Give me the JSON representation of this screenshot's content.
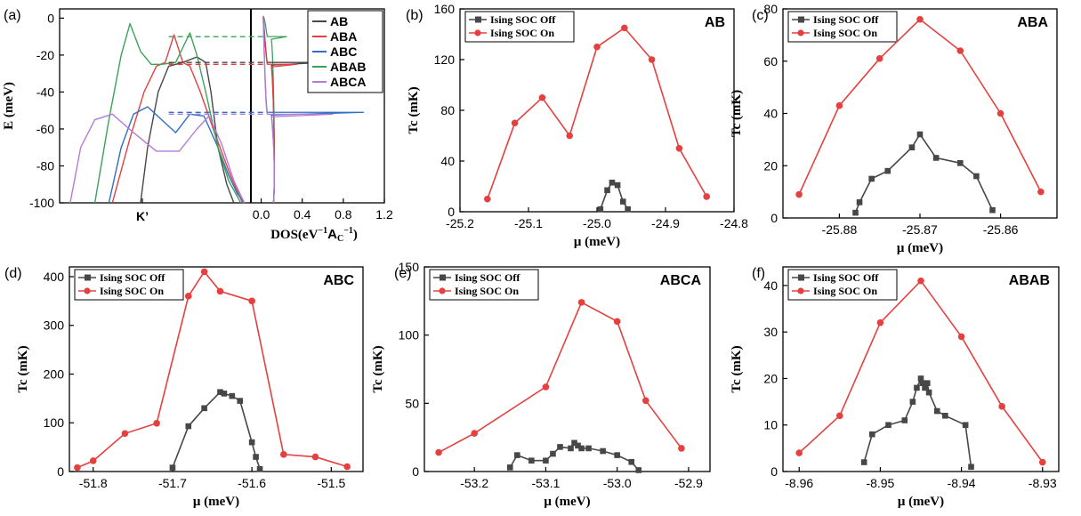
{
  "figure": {
    "colors": {
      "off": "#474747",
      "on": "#e5403f"
    }
  },
  "chart_data": [
    {
      "id": "a",
      "panel": "(a)",
      "type": "line",
      "ylabel": "E (meV)",
      "ylim": [
        -100,
        5
      ],
      "yticks": [
        0,
        -20,
        -40,
        -60,
        -80,
        -100
      ],
      "xtick_left": "K’",
      "dos_xlabel_main": "DOS",
      "dos_xlabel_unit": "(eV",
      "dos_xlabel_sup": "−1",
      "dos_xlabel_A": "A",
      "dos_xlabel_C": "C",
      "dos_xlabel_sup2": "−1",
      "dos_xlabel_close": ")",
      "dos_xlim": [
        -0.1,
        1.2
      ],
      "dos_xticks": [
        0.0,
        0.4,
        0.8,
        1.2
      ],
      "legend": [
        {
          "name": "AB",
          "color": "#474747"
        },
        {
          "name": "ABA",
          "color": "#e5403f"
        },
        {
          "name": "ABC",
          "color": "#2f6fc4"
        },
        {
          "name": "ABAB",
          "color": "#3aa35a"
        },
        {
          "name": "ABCA",
          "color": "#b57ad6"
        }
      ],
      "bands": [
        {
          "name": "AB",
          "color": "#474747",
          "x": [
            0.46,
            0.5,
            0.56,
            0.62,
            0.7,
            0.78,
            0.83,
            0.86,
            0.9,
            0.95,
            0.99
          ],
          "y": [
            -100,
            -70,
            -40,
            -26,
            -24,
            -21,
            -24,
            -40,
            -70,
            -90,
            -100
          ]
        },
        {
          "name": "ABA",
          "color": "#e5403f",
          "x": [
            0.3,
            0.4,
            0.48,
            0.55,
            0.6,
            0.65,
            0.7,
            0.74,
            0.8,
            0.88,
            0.97,
            1.04
          ],
          "y": [
            -100,
            -65,
            -40,
            -26,
            -24,
            -9,
            -24,
            -26,
            -40,
            -62,
            -85,
            -100
          ]
        },
        {
          "name": "ABC",
          "color": "#2f6fc4",
          "x": [
            0.28,
            0.35,
            0.42,
            0.5,
            0.58,
            0.66,
            0.74,
            0.82,
            0.9,
            0.96,
            1.01,
            1.05
          ],
          "y": [
            -100,
            -70,
            -52,
            -48,
            -55,
            -62,
            -52,
            -53,
            -70,
            -85,
            -95,
            -100
          ]
        },
        {
          "name": "ABAB",
          "color": "#3aa35a",
          "x": [
            0.2,
            0.28,
            0.35,
            0.4,
            0.46,
            0.52,
            0.58,
            0.66,
            0.74,
            0.78,
            0.83,
            0.9,
            0.96,
            1.03
          ],
          "y": [
            -100,
            -55,
            -20,
            -3,
            -18,
            -25,
            -25,
            -24,
            -8,
            -20,
            -40,
            -70,
            -88,
            -100
          ]
        },
        {
          "name": "ABCA",
          "color": "#b57ad6",
          "x": [
            0.06,
            0.12,
            0.2,
            0.3,
            0.42,
            0.55,
            0.68,
            0.78,
            0.85,
            0.92,
            0.99,
            1.05
          ],
          "y": [
            -100,
            -70,
            -55,
            -52,
            -62,
            -72,
            -72,
            -60,
            -53,
            -68,
            -88,
            -100
          ]
        }
      ],
      "dashed": [
        {
          "color": "#3aa35a",
          "y": -10
        },
        {
          "color": "#474747",
          "y": -24
        },
        {
          "color": "#e5403f",
          "y": -25
        },
        {
          "color": "#2f6fc4",
          "y": -51
        },
        {
          "color": "#b57ad6",
          "y": -52
        }
      ]
    },
    {
      "id": "b",
      "panel": "(b)",
      "name": "AB",
      "type": "line",
      "xlabel": "μ (meV)",
      "ylabel": "Tc (mK)",
      "xlim": [
        -25.2,
        -24.8
      ],
      "ylim": [
        0,
        160
      ],
      "xticks": [
        -25.2,
        -25.1,
        -25.0,
        -24.9,
        -24.8
      ],
      "xticklabels": [
        "-25.2",
        "-25.1",
        "-25.0",
        "-24.9",
        "-24.8"
      ],
      "yticks": [
        0,
        40,
        80,
        120,
        160
      ],
      "series": [
        {
          "name": "Ising SOC Off",
          "color": "#474747",
          "marker": "square",
          "x": [
            -24.995,
            -24.985,
            -24.978,
            -24.97,
            -24.962,
            -24.955
          ],
          "y": [
            2,
            17,
            23,
            21,
            8,
            2
          ]
        },
        {
          "name": "Ising SOC On",
          "color": "#e5403f",
          "marker": "circle",
          "x": [
            -25.16,
            -25.12,
            -25.08,
            -25.04,
            -25.0,
            -24.96,
            -24.92,
            -24.88,
            -24.84
          ],
          "y": [
            10,
            70,
            90,
            60,
            130,
            145,
            120,
            50,
            12
          ]
        }
      ]
    },
    {
      "id": "c",
      "panel": "(c)",
      "name": "ABA",
      "type": "line",
      "xlabel": "μ (meV)",
      "ylabel": "Tc (mK)",
      "xlim": [
        -25.887,
        -25.853
      ],
      "ylim": [
        0,
        80
      ],
      "xticks": [
        -25.88,
        -25.87,
        -25.86
      ],
      "xticklabels": [
        "-25.88",
        "-25.87",
        "-25.86"
      ],
      "yticks": [
        0,
        20,
        40,
        60,
        80
      ],
      "series": [
        {
          "name": "Ising SOC Off",
          "color": "#474747",
          "marker": "square",
          "x": [
            -25.878,
            -25.8775,
            -25.876,
            -25.874,
            -25.871,
            -25.87,
            -25.868,
            -25.865,
            -25.863,
            -25.861
          ],
          "y": [
            2,
            6,
            15,
            18,
            27,
            32,
            23,
            21,
            16,
            3
          ]
        },
        {
          "name": "Ising SOC On",
          "color": "#e5403f",
          "marker": "circle",
          "x": [
            -25.885,
            -25.88,
            -25.875,
            -25.87,
            -25.865,
            -25.86,
            -25.855
          ],
          "y": [
            9,
            43,
            61,
            76,
            64,
            40,
            10
          ]
        }
      ]
    },
    {
      "id": "d",
      "panel": "(d)",
      "name": "ABC",
      "type": "line",
      "xlabel": "μ (meV)",
      "ylabel": "Tc (mK)",
      "xlim": [
        -51.83,
        -51.46
      ],
      "ylim": [
        0,
        420
      ],
      "xticks": [
        -51.8,
        -51.7,
        -51.6,
        -51.5
      ],
      "xticklabels": [
        "-51.8",
        "-51.7",
        "-51.6",
        "-51.5"
      ],
      "yticks": [
        0,
        100,
        200,
        300,
        400
      ],
      "series": [
        {
          "name": "Ising SOC Off",
          "color": "#474747",
          "marker": "square",
          "x": [
            -51.7,
            -51.68,
            -51.66,
            -51.64,
            -51.635,
            -51.625,
            -51.615,
            -51.6,
            -51.595,
            -51.59
          ],
          "y": [
            8,
            93,
            130,
            163,
            160,
            155,
            145,
            60,
            30,
            5
          ]
        },
        {
          "name": "Ising SOC On",
          "color": "#e5403f",
          "marker": "circle",
          "x": [
            -51.82,
            -51.8,
            -51.76,
            -51.72,
            -51.68,
            -51.66,
            -51.64,
            -51.6,
            -51.56,
            -51.52,
            -51.48
          ],
          "y": [
            8,
            22,
            78,
            99,
            360,
            410,
            370,
            350,
            35,
            30,
            10
          ]
        }
      ]
    },
    {
      "id": "e",
      "panel": "(e)",
      "name": "ABCA",
      "type": "line",
      "xlabel": "μ (meV)",
      "ylabel": "Tc (mK)",
      "xlim": [
        -53.27,
        -52.87
      ],
      "ylim": [
        0,
        150
      ],
      "xticks": [
        -53.2,
        -53.1,
        -53.0,
        -52.9
      ],
      "xticklabels": [
        "-53.2",
        "-53.1",
        "-53.0",
        "-52.9"
      ],
      "yticks": [
        0,
        50,
        100,
        150
      ],
      "series": [
        {
          "name": "Ising SOC Off",
          "color": "#474747",
          "marker": "square",
          "x": [
            -53.15,
            -53.14,
            -53.12,
            -53.1,
            -53.09,
            -53.08,
            -53.065,
            -53.06,
            -53.055,
            -53.05,
            -53.04,
            -53.02,
            -53.0,
            -52.98,
            -52.97
          ],
          "y": [
            3,
            12,
            8,
            8,
            13,
            18,
            17,
            21,
            19,
            17,
            17,
            15,
            12,
            7,
            1
          ]
        },
        {
          "name": "Ising SOC On",
          "color": "#e5403f",
          "marker": "circle",
          "x": [
            -53.25,
            -53.2,
            -53.1,
            -53.05,
            -53.0,
            -52.96,
            -52.91
          ],
          "y": [
            14,
            28,
            62,
            124,
            110,
            52,
            17
          ]
        }
      ]
    },
    {
      "id": "f",
      "panel": "(f)",
      "name": "ABAB",
      "type": "line",
      "xlabel": "μ (meV)",
      "ylabel": "Tc (mK)",
      "xlim": [
        -8.962,
        -8.928
      ],
      "ylim": [
        0,
        44
      ],
      "xticks": [
        -8.96,
        -8.95,
        -8.94,
        -8.93
      ],
      "xticklabels": [
        "-8.96",
        "-8.95",
        "-8.94",
        "-8.93"
      ],
      "yticks": [
        0,
        10,
        20,
        30,
        40
      ],
      "series": [
        {
          "name": "Ising SOC Off",
          "color": "#474747",
          "marker": "square",
          "x": [
            -8.952,
            -8.951,
            -8.949,
            -8.947,
            -8.946,
            -8.9455,
            -8.945,
            -8.9448,
            -8.9445,
            -8.9442,
            -8.944,
            -8.943,
            -8.942,
            -8.9395,
            -8.9388
          ],
          "y": [
            2,
            8,
            10,
            11,
            15,
            18,
            20,
            19,
            18,
            19,
            17,
            13,
            12,
            10,
            1
          ]
        },
        {
          "name": "Ising SOC On",
          "color": "#e5403f",
          "marker": "circle",
          "x": [
            -8.96,
            -8.955,
            -8.95,
            -8.945,
            -8.94,
            -8.935,
            -8.93
          ],
          "y": [
            4,
            12,
            32,
            41,
            29,
            14,
            2
          ]
        }
      ]
    }
  ]
}
